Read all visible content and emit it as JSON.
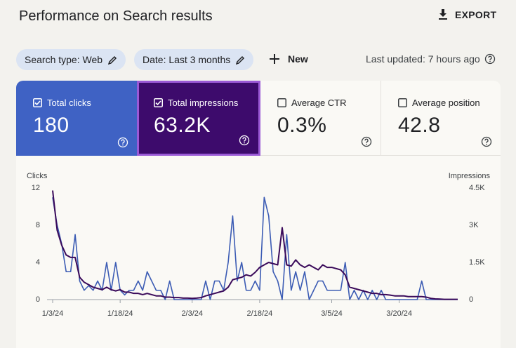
{
  "header": {
    "title": "Performance on Search results",
    "export": "EXPORT"
  },
  "filters": {
    "chips": [
      "Search type: Web",
      "Date: Last 3 months"
    ],
    "new": "New",
    "last_updated": "Last updated: 7 hours ago"
  },
  "metrics": [
    {
      "value": "180",
      "checked": true
    },
    {
      "value": "63.2K",
      "checked": true
    },
    {
      "label": "Average CTR",
      "value": "0.3%",
      "checked": false
    },
    {
      "label": "Average position",
      "value": "42.8",
      "checked": false
    }
  ],
  "chart_data": {
    "type": "line",
    "y_label": "Clicks",
    "y2_label": "Impressions",
    "x": [
      "1/3/24",
      "1/4/24",
      "1/5/24",
      "1/6/24",
      "1/7/24",
      "1/8/24",
      "1/9/24",
      "1/10/24",
      "1/11/24",
      "1/12/24",
      "1/13/24",
      "1/14/24",
      "1/15/24",
      "1/16/24",
      "1/17/24",
      "1/18/24",
      "1/19/24",
      "1/20/24",
      "1/21/24",
      "1/22/24",
      "1/23/24",
      "1/24/24",
      "1/25/24",
      "1/26/24",
      "1/27/24",
      "1/28/24",
      "1/29/24",
      "1/30/24",
      "1/31/24",
      "2/1/24",
      "2/2/24",
      "2/3/24",
      "2/4/24",
      "2/5/24",
      "2/6/24",
      "2/7/24",
      "2/8/24",
      "2/9/24",
      "2/10/24",
      "2/11/24",
      "2/12/24",
      "2/13/24",
      "2/14/24",
      "2/15/24",
      "2/16/24",
      "2/17/24",
      "2/18/24",
      "2/19/24",
      "2/20/24",
      "2/21/24",
      "2/22/24",
      "2/23/24",
      "2/24/24",
      "2/25/24",
      "2/26/24",
      "2/27/24",
      "2/28/24",
      "2/29/24",
      "3/1/24",
      "3/2/24",
      "3/3/24",
      "3/4/24",
      "3/5/24",
      "3/6/24",
      "3/7/24",
      "3/8/24",
      "3/9/24",
      "3/10/24",
      "3/11/24",
      "3/12/24",
      "3/13/24",
      "3/14/24",
      "3/15/24",
      "3/16/24",
      "3/17/24",
      "3/18/24",
      "3/19/24",
      "3/20/24",
      "3/21/24",
      "3/22/24",
      "3/23/24",
      "3/24/24",
      "3/25/24",
      "3/26/24",
      "3/27/24",
      "3/28/24",
      "3/29/24",
      "3/30/24",
      "3/31/24",
      "4/1/24",
      "4/2/24"
    ],
    "xticks": [
      "1/3/24",
      "1/18/24",
      "2/3/24",
      "2/18/24",
      "3/5/24",
      "3/20/24"
    ],
    "ylim": [
      0,
      12
    ],
    "yticks": [
      0,
      4,
      8,
      12
    ],
    "y2lim": [
      0,
      4500
    ],
    "y2ticks": [
      0,
      {
        "value": 1500,
        "label": "1.5K"
      },
      {
        "value": 3000,
        "label": "3K"
      },
      {
        "value": 4500,
        "label": "4.5K"
      }
    ],
    "series": [
      {
        "name": "Total clicks",
        "color": "#3c5cb4",
        "values": [
          11,
          8,
          6,
          3,
          3,
          7,
          2,
          1,
          1.5,
          1,
          2,
          1,
          4,
          1,
          4,
          1,
          0.5,
          1,
          1,
          2,
          1,
          3,
          2,
          1,
          1,
          0,
          2,
          0,
          0,
          0,
          0,
          0,
          0,
          0,
          2,
          0,
          2,
          2,
          1,
          4,
          9,
          2,
          4,
          1,
          1,
          2,
          1,
          11,
          9,
          3,
          2,
          0,
          7,
          1,
          3,
          1,
          3,
          0,
          1,
          2,
          2,
          1,
          1,
          1,
          1,
          4,
          0,
          1,
          0,
          1,
          0,
          1,
          0,
          1,
          0,
          0,
          0,
          0,
          0,
          0,
          0,
          0,
          2,
          0,
          0,
          0,
          0,
          0,
          0,
          0,
          0
        ]
      },
      {
        "name": "Total impressions",
        "color": "#3a0a5a",
        "axis": "y2",
        "values": [
          4400,
          2800,
          2200,
          1800,
          1700,
          1700,
          900,
          700,
          600,
          500,
          450,
          400,
          500,
          400,
          350,
          400,
          300,
          300,
          250,
          250,
          200,
          250,
          200,
          150,
          150,
          100,
          100,
          80,
          80,
          60,
          60,
          50,
          60,
          80,
          150,
          200,
          250,
          300,
          350,
          500,
          800,
          850,
          900,
          1000,
          950,
          1100,
          1300,
          1400,
          1500,
          1450,
          1400,
          2900,
          1400,
          1350,
          1600,
          1400,
          1300,
          1400,
          1300,
          1200,
          1400,
          1300,
          1300,
          1250,
          1200,
          1000,
          500,
          450,
          400,
          350,
          300,
          250,
          250,
          200,
          200,
          180,
          150,
          150,
          150,
          120,
          120,
          120,
          120,
          100,
          50,
          30,
          20,
          10,
          10,
          10,
          10
        ]
      }
    ]
  }
}
